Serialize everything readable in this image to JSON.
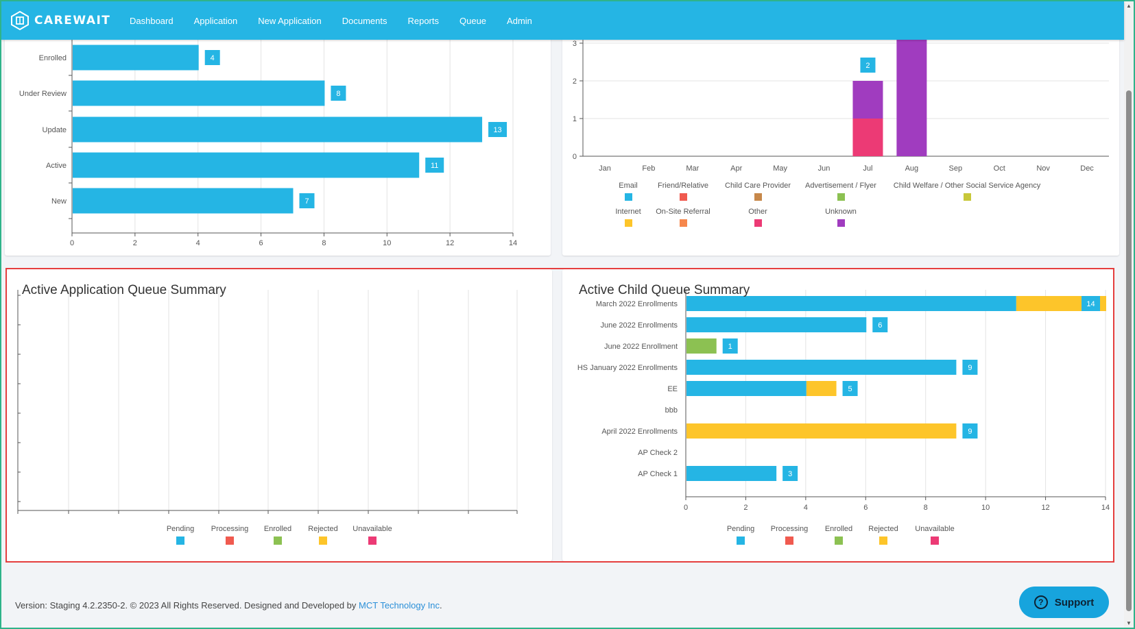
{
  "brand": {
    "name": "CAREWAIT"
  },
  "nav": [
    "Dashboard",
    "Application",
    "New Application",
    "Documents",
    "Reports",
    "Queue",
    "Admin"
  ],
  "status_chart": {
    "chart_data": {
      "type": "bar",
      "orientation": "horizontal",
      "categories": [
        "Enrolled",
        "Under Review",
        "Update",
        "Active",
        "New"
      ],
      "values": [
        4,
        8,
        13,
        11,
        7
      ],
      "xlim": [
        0,
        14
      ],
      "xticks": [
        0,
        2,
        4,
        6,
        8,
        10,
        12,
        14
      ],
      "color": "#25b5e4"
    }
  },
  "source_chart": {
    "chart_data": {
      "type": "bar",
      "stacked": true,
      "categories": [
        "Jan",
        "Feb",
        "Mar",
        "Apr",
        "May",
        "Jun",
        "Jul",
        "Aug",
        "Sep",
        "Oct",
        "Nov",
        "Dec"
      ],
      "yticks": [
        0,
        1,
        2,
        3
      ],
      "series": [
        {
          "name": "Email",
          "color": "#25b5e4",
          "values": [
            0,
            0,
            0,
            0,
            0,
            0,
            0,
            0,
            0,
            0,
            0,
            0
          ]
        },
        {
          "name": "Friend/Relative",
          "color": "#f05a4f",
          "values": [
            0,
            0,
            0,
            0,
            0,
            0,
            0,
            0,
            0,
            0,
            0,
            0
          ]
        },
        {
          "name": "Child Care Provider",
          "color": "#c7884a",
          "values": [
            0,
            0,
            0,
            0,
            0,
            0,
            0,
            0,
            0,
            0,
            0,
            0
          ]
        },
        {
          "name": "Advertisement / Flyer",
          "color": "#8cc152",
          "values": [
            0,
            0,
            0,
            0,
            0,
            0,
            0,
            0,
            0,
            0,
            0,
            0
          ]
        },
        {
          "name": "Child Welfare / Other Social Service Agency",
          "color": "#c8c83a",
          "values": [
            0,
            0,
            0,
            0,
            0,
            0,
            0,
            0,
            0,
            0,
            0,
            0
          ]
        },
        {
          "name": "Internet",
          "color": "#fdc52a",
          "values": [
            0,
            0,
            0,
            0,
            0,
            0,
            0,
            0,
            0,
            0,
            0,
            0
          ]
        },
        {
          "name": "On-Site Referral",
          "color": "#f6874c",
          "values": [
            0,
            0,
            0,
            0,
            0,
            0,
            0,
            0,
            0,
            0,
            0,
            0
          ]
        },
        {
          "name": "Other",
          "color": "#ec3a75",
          "values": [
            0,
            0,
            0,
            0,
            0,
            0,
            1,
            0,
            0,
            0,
            0,
            0
          ]
        },
        {
          "name": "Unknown",
          "color": "#a03cbf",
          "values": [
            0,
            0,
            0,
            0,
            0,
            0,
            1,
            3.2,
            0,
            0,
            0,
            0
          ]
        }
      ],
      "total_labels": {
        "Jul": "2"
      }
    }
  },
  "app_queue": {
    "title": "Active Application Queue Summary",
    "chart_data": {
      "type": "bar",
      "orientation": "horizontal",
      "categories": [],
      "series": [
        {
          "name": "Pending",
          "color": "#25b5e4"
        },
        {
          "name": "Processing",
          "color": "#f05a4f"
        },
        {
          "name": "Enrolled",
          "color": "#8cc152"
        },
        {
          "name": "Rejected",
          "color": "#fdc52a"
        },
        {
          "name": "Unavailable",
          "color": "#ec3a75"
        }
      ]
    }
  },
  "child_queue": {
    "title": "Active Child Queue Summary",
    "chart_data": {
      "type": "bar",
      "orientation": "horizontal",
      "stacked": true,
      "categories": [
        "March 2022 Enrollments",
        "June 2022 Enrollments",
        "June 2022 Enrollment",
        "HS January 2022 Enrollments",
        "EE",
        "bbb",
        "April 2022 Enrollments",
        "AP Check 2",
        "AP Check 1"
      ],
      "xlim": [
        0,
        14
      ],
      "xticks": [
        0,
        2,
        4,
        6,
        8,
        10,
        12,
        14
      ],
      "series": [
        {
          "name": "Pending",
          "color": "#25b5e4",
          "values": [
            11,
            6,
            0,
            9,
            4,
            0,
            0,
            0,
            3
          ]
        },
        {
          "name": "Processing",
          "color": "#f05a4f",
          "values": [
            0,
            0,
            0,
            0,
            0,
            0,
            0,
            0,
            0
          ]
        },
        {
          "name": "Enrolled",
          "color": "#8cc152",
          "values": [
            0,
            0,
            1,
            0,
            0,
            0,
            0,
            0,
            0
          ]
        },
        {
          "name": "Rejected",
          "color": "#fdc52a",
          "values": [
            3,
            0,
            0,
            0,
            1,
            0,
            9,
            0,
            0
          ]
        },
        {
          "name": "Unavailable",
          "color": "#ec3a75",
          "values": [
            0,
            0,
            0,
            0,
            0,
            0,
            0,
            0,
            0
          ]
        }
      ],
      "total_labels": [
        "14",
        "6",
        "1",
        "9",
        "5",
        "",
        "9",
        "",
        "3"
      ]
    }
  },
  "footer": {
    "text": "Version: Staging 4.2.2350-2. © 2023 All Rights Reserved. Designed and Developed by ",
    "link": "MCT Technology Inc",
    "suffix": "."
  },
  "support": {
    "label": "Support",
    "icon": "question-circle-icon"
  }
}
